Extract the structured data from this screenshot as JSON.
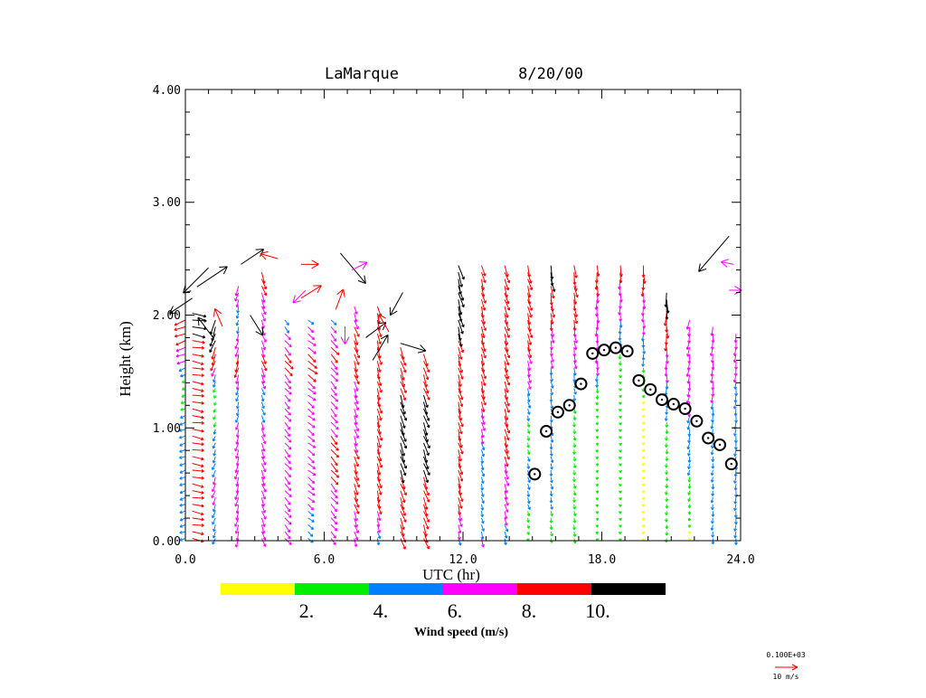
{
  "chart_data": {
    "type": "wind-profile",
    "title": {
      "site": "LaMarque",
      "date": "8/20/00"
    },
    "xlabel": "UTC (hr)",
    "ylabel": "Height (km)",
    "xlim": [
      0,
      24
    ],
    "ylim": [
      0,
      4
    ],
    "xticks": [
      0,
      6,
      12,
      18,
      24
    ],
    "xtick_labels": [
      "0.0",
      "6.0",
      "12.0",
      "18.0",
      "24.0"
    ],
    "yticks": [
      0,
      1,
      2,
      3,
      4
    ],
    "ytick_labels": [
      "0.00",
      "1.00",
      "2.00",
      "3.00",
      "4.00"
    ],
    "colorbar": {
      "title": "Wind speed (m/s)",
      "colors": [
        "#ffff00",
        "#00ee00",
        "#0080ff",
        "#ff00ff",
        "#ff0000",
        "#000000"
      ],
      "boundaries": [
        0,
        2,
        4,
        6,
        8,
        10,
        12
      ],
      "labels": [
        "2.",
        "4.",
        "6.",
        "8.",
        "10."
      ]
    },
    "reference_vector": {
      "scale_text": "0.100E+03",
      "label": "10 m/s",
      "speed": 10,
      "color": "#ff0000"
    },
    "mixing_height_points": [
      {
        "x": 15.1,
        "y": 0.59
      },
      {
        "x": 15.6,
        "y": 0.97
      },
      {
        "x": 16.1,
        "y": 1.14
      },
      {
        "x": 16.6,
        "y": 1.2
      },
      {
        "x": 17.1,
        "y": 1.39
      },
      {
        "x": 17.6,
        "y": 1.66
      },
      {
        "x": 18.1,
        "y": 1.69
      },
      {
        "x": 18.6,
        "y": 1.71
      },
      {
        "x": 19.1,
        "y": 1.68
      },
      {
        "x": 19.6,
        "y": 1.42
      },
      {
        "x": 20.1,
        "y": 1.34
      },
      {
        "x": 20.6,
        "y": 1.25
      },
      {
        "x": 21.1,
        "y": 1.21
      },
      {
        "x": 21.6,
        "y": 1.17
      },
      {
        "x": 22.1,
        "y": 1.06
      },
      {
        "x": 22.6,
        "y": 0.91
      },
      {
        "x": 23.1,
        "y": 0.85
      },
      {
        "x": 23.6,
        "y": 0.68
      }
    ],
    "wind_profiles": [
      {
        "time": 0.0,
        "dir": 250,
        "top": 2.0,
        "speeds": [
          [
            0.0,
            4.5
          ],
          [
            0.5,
            4.6
          ],
          [
            1.0,
            5.0
          ],
          [
            1.4,
            2.5
          ],
          [
            1.6,
            7.0
          ],
          [
            2.0,
            9.5
          ]
        ]
      },
      {
        "time": 0.3,
        "dir": 100,
        "top": 2.05,
        "speeds": [
          [
            1.7,
            9.0
          ],
          [
            1.9,
            11.0
          ]
        ]
      },
      {
        "time": 1.3,
        "dir": 200,
        "top": 2.0,
        "speeds": [
          [
            0.0,
            5.0
          ],
          [
            0.5,
            6.5
          ],
          [
            0.9,
            4.5
          ],
          [
            1.3,
            2.5
          ],
          [
            1.6,
            8.5
          ],
          [
            2.0,
            12.0
          ]
        ]
      },
      {
        "time": 2.3,
        "dir": 195,
        "top": 2.3,
        "speeds": [
          [
            0.0,
            7.0
          ],
          [
            0.7,
            7.5
          ],
          [
            1.3,
            5.0
          ],
          [
            1.6,
            9.0
          ],
          [
            2.0,
            4.0
          ],
          [
            2.3,
            8.5
          ]
        ]
      },
      {
        "time": 3.3,
        "dir": 160,
        "top": 2.4,
        "speeds": [
          [
            0.0,
            7.0
          ],
          [
            0.8,
            7.2
          ],
          [
            1.3,
            5.0
          ],
          [
            1.6,
            8.5
          ],
          [
            2.0,
            6.5
          ],
          [
            2.4,
            9.0
          ]
        ]
      },
      {
        "time": 4.3,
        "dir": 140,
        "top": 2.0,
        "speeds": [
          [
            0.0,
            7.0
          ],
          [
            0.8,
            7.0
          ],
          [
            1.3,
            6.5
          ],
          [
            1.6,
            9.0
          ],
          [
            2.0,
            4.5
          ]
        ]
      },
      {
        "time": 5.3,
        "dir": 130,
        "top": 2.0,
        "speeds": [
          [
            0.0,
            5.0
          ],
          [
            0.6,
            7.0
          ],
          [
            1.2,
            6.5
          ],
          [
            1.6,
            9.0
          ],
          [
            2.0,
            5.0
          ]
        ]
      },
      {
        "time": 6.3,
        "dir": 140,
        "top": 2.0,
        "speeds": [
          [
            0.0,
            6.0
          ],
          [
            0.7,
            8.5
          ],
          [
            1.4,
            7.0
          ],
          [
            1.7,
            8.5
          ],
          [
            2.0,
            5.0
          ]
        ]
      },
      {
        "time": 7.3,
        "dir": 160,
        "top": 2.1,
        "speeds": [
          [
            0.0,
            6.5
          ],
          [
            0.5,
            9.0
          ],
          [
            1.2,
            7.0
          ],
          [
            1.8,
            9.5
          ],
          [
            2.1,
            6.0
          ]
        ]
      },
      {
        "time": 8.3,
        "dir": 165,
        "top": 2.1,
        "speeds": [
          [
            0.0,
            5.0
          ],
          [
            0.4,
            9.0
          ],
          [
            1.2,
            9.5
          ],
          [
            2.1,
            8.0
          ]
        ]
      },
      {
        "time": 9.3,
        "dir": 160,
        "top": 1.75,
        "speeds": [
          [
            0.0,
            9.0
          ],
          [
            0.9,
            10.5
          ],
          [
            1.75,
            9.5
          ]
        ]
      },
      {
        "time": 10.3,
        "dir": 160,
        "top": 1.7,
        "speeds": [
          [
            0.0,
            9.0
          ],
          [
            0.9,
            10.5
          ],
          [
            1.7,
            9.5
          ]
        ]
      },
      {
        "time": 11.8,
        "dir": 165,
        "top": 2.5,
        "speeds": [
          [
            0.0,
            5.5
          ],
          [
            0.4,
            9.0
          ],
          [
            1.7,
            9.5
          ],
          [
            2.1,
            12.0
          ],
          [
            2.5,
            11.5
          ]
        ]
      },
      {
        "time": 12.8,
        "dir": 165,
        "top": 2.5,
        "speeds": [
          [
            0.0,
            7.0
          ],
          [
            0.2,
            4.5
          ],
          [
            0.8,
            5.5
          ],
          [
            1.4,
            9.0
          ],
          [
            2.5,
            8.5
          ]
        ]
      },
      {
        "time": 13.8,
        "dir": 162,
        "top": 2.5,
        "speeds": [
          [
            0.0,
            5.0
          ],
          [
            0.3,
            6.5
          ],
          [
            1.0,
            9.0
          ],
          [
            2.5,
            9.0
          ]
        ]
      },
      {
        "time": 14.8,
        "dir": 165,
        "top": 2.5,
        "speeds": [
          [
            0.0,
            2.0
          ],
          [
            0.4,
            5.0
          ],
          [
            1.0,
            3.5
          ],
          [
            1.8,
            9.0
          ],
          [
            2.5,
            9.0
          ]
        ]
      },
      {
        "time": 15.8,
        "dir": 170,
        "top": 2.5,
        "speeds": [
          [
            0.0,
            3.5
          ],
          [
            0.8,
            5.0
          ],
          [
            1.5,
            5.5
          ],
          [
            2.0,
            8.5
          ],
          [
            2.5,
            11.0
          ]
        ]
      },
      {
        "time": 16.8,
        "dir": 170,
        "top": 2.5,
        "speeds": [
          [
            0.0,
            4.0
          ],
          [
            1.1,
            3.5
          ],
          [
            1.8,
            7.5
          ],
          [
            2.5,
            10.0
          ]
        ]
      },
      {
        "time": 17.8,
        "dir": 180,
        "top": 2.5,
        "speeds": [
          [
            0.0,
            2.0
          ],
          [
            1.2,
            2.0
          ],
          [
            1.6,
            7.0
          ],
          [
            2.5,
            8.5
          ]
        ]
      },
      {
        "time": 18.8,
        "dir": 180,
        "top": 2.5,
        "speeds": [
          [
            0.0,
            2.0
          ],
          [
            1.4,
            2.0
          ],
          [
            1.8,
            5.0
          ],
          [
            2.5,
            9.0
          ]
        ]
      },
      {
        "time": 19.8,
        "dir": 180,
        "top": 2.5,
        "speeds": [
          [
            0.0,
            2.0
          ],
          [
            1.2,
            1.5
          ],
          [
            1.7,
            5.0
          ],
          [
            2.5,
            9.5
          ]
        ]
      },
      {
        "time": 20.8,
        "dir": 180,
        "top": 2.2,
        "speeds": [
          [
            0.0,
            3.0
          ],
          [
            1.0,
            3.5
          ],
          [
            1.6,
            7.0
          ],
          [
            2.2,
            11.0
          ]
        ]
      },
      {
        "time": 21.8,
        "dir": 190,
        "top": 2.0,
        "speeds": [
          [
            0.0,
            1.5
          ],
          [
            0.7,
            4.5
          ],
          [
            1.4,
            7.0
          ],
          [
            2.0,
            7.5
          ]
        ]
      },
      {
        "time": 22.8,
        "dir": 185,
        "top": 1.95,
        "speeds": [
          [
            0.0,
            4.5
          ],
          [
            0.8,
            4.0
          ],
          [
            1.4,
            6.5
          ],
          [
            1.95,
            7.0
          ]
        ]
      },
      {
        "time": 23.8,
        "dir": 185,
        "top": 1.85,
        "speeds": [
          [
            0.0,
            5.0
          ],
          [
            0.6,
            5.0
          ],
          [
            1.2,
            5.5
          ],
          [
            1.85,
            7.0
          ]
        ]
      }
    ],
    "upper_vectors": [
      {
        "time": 0.5,
        "z": 2.25,
        "u": 12,
        "v": 8,
        "speed": 14
      },
      {
        "time": 0.3,
        "z": 2.15,
        "u": -9,
        "v": -6,
        "speed": 11
      },
      {
        "time": 1.0,
        "z": 2.42,
        "u": -10,
        "v": -10,
        "speed": 14
      },
      {
        "time": 1.2,
        "z": 1.8,
        "u": -6,
        "v": 8,
        "speed": 10
      },
      {
        "time": 1.6,
        "z": 1.9,
        "u": -3,
        "v": 7,
        "speed": 8
      },
      {
        "time": 2.4,
        "z": 2.45,
        "u": 9,
        "v": 6,
        "speed": 11
      },
      {
        "time": 2.8,
        "z": 2.0,
        "u": 5,
        "v": -8,
        "speed": 10
      },
      {
        "time": 4.0,
        "z": 2.5,
        "u": -7,
        "v": 2,
        "speed": 8
      },
      {
        "time": 5.0,
        "z": 2.45,
        "u": 7,
        "v": 0,
        "speed": 8
      },
      {
        "time": 5.2,
        "z": 2.22,
        "u": -5,
        "v": -5,
        "speed": 7
      },
      {
        "time": 5.0,
        "z": 2.15,
        "u": 8,
        "v": 5,
        "speed": 9
      },
      {
        "time": 6.7,
        "z": 2.55,
        "u": 10,
        "v": -12,
        "speed": 15
      },
      {
        "time": 7.2,
        "z": 2.4,
        "u": 6,
        "v": 3,
        "speed": 7
      },
      {
        "time": 6.5,
        "z": 2.05,
        "u": 3,
        "v": 8,
        "speed": 9
      },
      {
        "time": 6.9,
        "z": 1.9,
        "u": 0,
        "v": -7,
        "speed": 7
      },
      {
        "time": 7.8,
        "z": 1.8,
        "u": 8,
        "v": 6,
        "speed": 10
      },
      {
        "time": 8.1,
        "z": 1.6,
        "u": 6,
        "v": 10,
        "speed": 12
      },
      {
        "time": 9.3,
        "z": 1.75,
        "u": 10,
        "v": -3,
        "speed": 10
      },
      {
        "time": 9.4,
        "z": 2.2,
        "u": -5,
        "v": -9,
        "speed": 10
      },
      {
        "time": 8.8,
        "z": 1.85,
        "u": -4,
        "v": 7,
        "speed": 8
      },
      {
        "time": 23.5,
        "z": 2.7,
        "u": -12,
        "v": -14,
        "speed": 18
      },
      {
        "time": 23.7,
        "z": 2.45,
        "u": -5,
        "v": 1,
        "speed": 6
      },
      {
        "time": 23.5,
        "z": 2.22,
        "u": 5,
        "v": 0,
        "speed": 6
      }
    ]
  }
}
